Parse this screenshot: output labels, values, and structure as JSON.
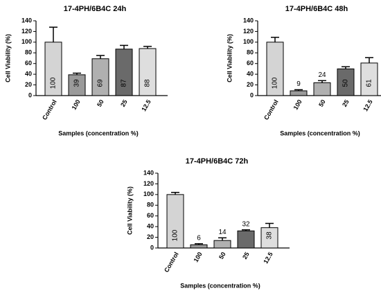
{
  "chart_data": [
    {
      "type": "bar",
      "title": "17-4PH/6B4C 24h",
      "x_label": "Samples (concentration %)",
      "y_label": "Cell Viability (%)",
      "categories": [
        "Control",
        "100",
        "50",
        "25",
        "12.5"
      ],
      "values": [
        100,
        39,
        69,
        87,
        88
      ],
      "errors": [
        28,
        3,
        6,
        7,
        4
      ],
      "colors": [
        "#d4d4d4",
        "#9a9a9a",
        "#b0b0b0",
        "#6a6a6a",
        "#dedede"
      ],
      "ylim": [
        0,
        140
      ],
      "yticks": [
        0,
        20,
        40,
        60,
        80,
        100,
        120,
        140
      ]
    },
    {
      "type": "bar",
      "title": "17-4PH/6B4C 48h",
      "x_label": "Samples (concentration %)",
      "y_label": "Cell Viability (%)",
      "categories": [
        "Control",
        "100",
        "50",
        "25",
        "12.5"
      ],
      "values": [
        100,
        9,
        24,
        50,
        61
      ],
      "errors": [
        9,
        2,
        4,
        4,
        10
      ],
      "colors": [
        "#d4d4d4",
        "#9a9a9a",
        "#b0b0b0",
        "#6a6a6a",
        "#dedede"
      ],
      "ylim": [
        0,
        140
      ],
      "yticks": [
        0,
        20,
        40,
        60,
        80,
        100,
        120,
        140
      ]
    },
    {
      "type": "bar",
      "title": "17-4PH/6B4C 72h",
      "x_label": "Samples (concentration %)",
      "y_label": "Cell Viability (%)",
      "categories": [
        "Control",
        "100",
        "50",
        "25",
        "12.5"
      ],
      "values": [
        100,
        6,
        14,
        32,
        38
      ],
      "errors": [
        4,
        2,
        5,
        2,
        8
      ],
      "colors": [
        "#d4d4d4",
        "#9a9a9a",
        "#b0b0b0",
        "#6a6a6a",
        "#dedede"
      ],
      "ylim": [
        0,
        140
      ],
      "yticks": [
        0,
        20,
        40,
        60,
        80,
        100,
        120,
        140
      ]
    }
  ]
}
